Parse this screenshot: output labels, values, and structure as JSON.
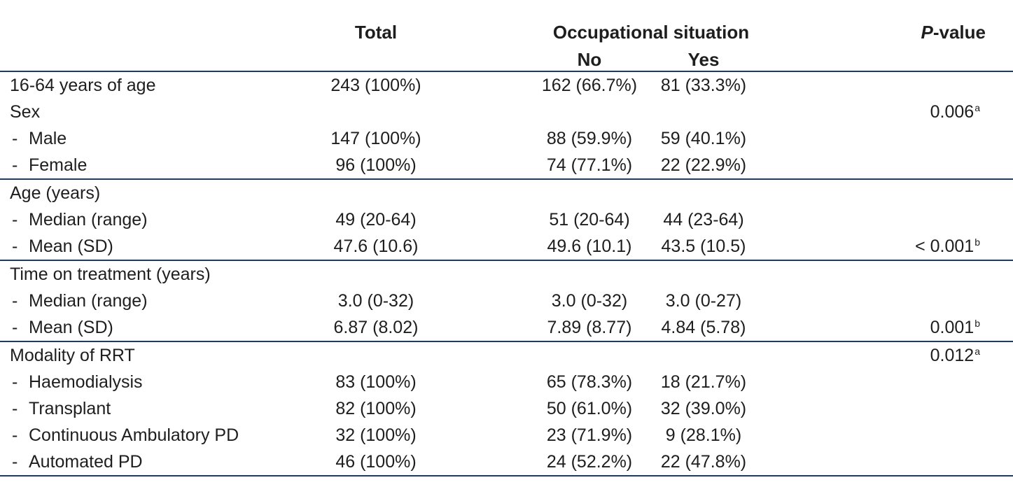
{
  "colors": {
    "rule_line": "#1b3b6e",
    "text": "#1e1e1e"
  },
  "table": {
    "indent_marker": "-",
    "header": {
      "total": "Total",
      "group": "Occupational situation",
      "no": "No",
      "yes": "Yes",
      "p_italic": "P",
      "p_rest": "-value"
    },
    "groups": [
      {
        "rows": [
          {
            "label": "16-64 years of age",
            "indent": false,
            "total": "243 (100%)",
            "no": "162 (66.7%)",
            "yes": "81 (33.3%)"
          },
          {
            "label": "Sex",
            "indent": false,
            "p": "0.006",
            "p_sup": "a"
          },
          {
            "label": "Male",
            "indent": true,
            "total": "147 (100%)",
            "no": "88 (59.9%)",
            "yes": "59 (40.1%)"
          },
          {
            "label": "Female",
            "indent": true,
            "total": "96 (100%)",
            "no": "74 (77.1%)",
            "yes": "22 (22.9%)"
          }
        ]
      },
      {
        "rows": [
          {
            "label": "Age (years)",
            "indent": false
          },
          {
            "label": "Median (range)",
            "indent": true,
            "total": "49 (20-64)",
            "no": "51 (20-64)",
            "yes": "44 (23-64)"
          },
          {
            "label": "Mean (SD)",
            "indent": true,
            "total": "47.6 (10.6)",
            "no": "49.6 (10.1)",
            "yes": "43.5 (10.5)",
            "p": "< 0.001",
            "p_sup": "b"
          }
        ]
      },
      {
        "rows": [
          {
            "label": "Time on treatment (years)",
            "indent": false
          },
          {
            "label": "Median (range)",
            "indent": true,
            "total": "3.0 (0-32)",
            "no": "3.0 (0-32)",
            "yes": "3.0 (0-27)"
          },
          {
            "label": "Mean (SD)",
            "indent": true,
            "total": "6.87 (8.02)",
            "no": "7.89 (8.77)",
            "yes": "4.84 (5.78)",
            "p": "0.001",
            "p_sup": "b"
          }
        ]
      },
      {
        "rows": [
          {
            "label": "Modality of RRT",
            "indent": false,
            "p": "0.012",
            "p_sup": "a"
          },
          {
            "label": "Haemodialysis",
            "indent": true,
            "total": "83 (100%)",
            "no": "65 (78.3%)",
            "yes": "18 (21.7%)"
          },
          {
            "label": "Transplant",
            "indent": true,
            "total": "82 (100%)",
            "no": "50 (61.0%)",
            "yes": "32 (39.0%)"
          },
          {
            "label": "Continuous Ambulatory PD",
            "indent": true,
            "total": "32 (100%)",
            "no": "23 (71.9%)",
            "yes": "9 (28.1%)"
          },
          {
            "label": "Automated PD",
            "indent": true,
            "total": "46 (100%)",
            "no": "24 (52.2%)",
            "yes": "22 (47.8%)"
          }
        ]
      }
    ]
  }
}
